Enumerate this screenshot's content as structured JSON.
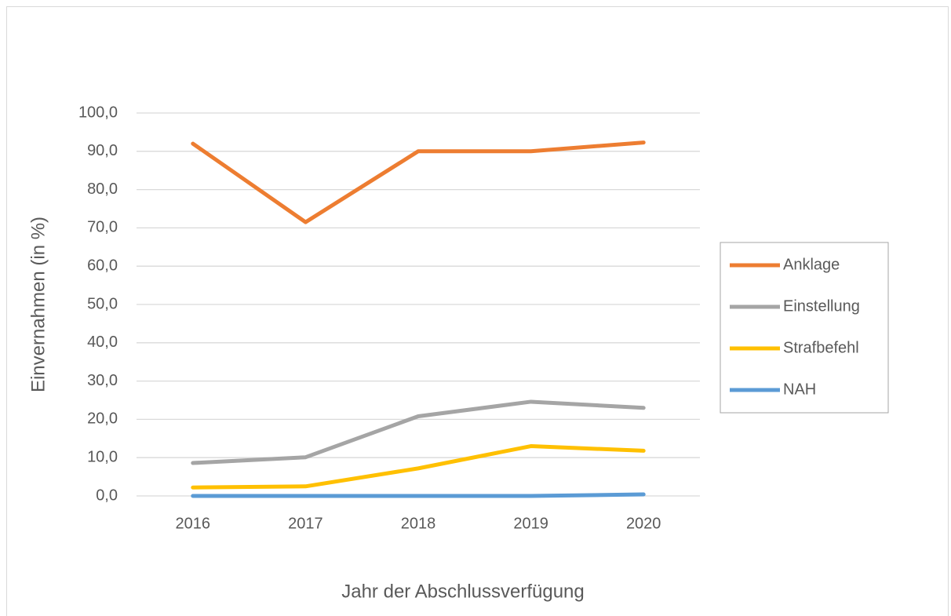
{
  "chart_data": {
    "type": "line",
    "xlabel": "Jahr der Abschlussverfügung",
    "ylabel": "Einvernahmen (in %)",
    "categories": [
      "2016",
      "2017",
      "2018",
      "2019",
      "2020"
    ],
    "series": [
      {
        "name": "Anklage",
        "color": "#ed7d31",
        "values": [
          92.0,
          71.5,
          90.0,
          90.0,
          92.3
        ]
      },
      {
        "name": "Einstellung",
        "color": "#a5a5a5",
        "values": [
          8.6,
          10.1,
          20.8,
          24.6,
          23.0
        ]
      },
      {
        "name": "Strafbefehl",
        "color": "#ffc000",
        "values": [
          2.2,
          2.5,
          7.2,
          13.0,
          11.8
        ]
      },
      {
        "name": "NAH",
        "color": "#5b9bd5",
        "values": [
          0.0,
          0.0,
          0.0,
          0.0,
          0.4
        ]
      }
    ],
    "ylim": [
      0,
      100
    ],
    "yticks": [
      {
        "value": 0,
        "label": "0,0"
      },
      {
        "value": 10,
        "label": "10,0"
      },
      {
        "value": 20,
        "label": "20,0"
      },
      {
        "value": 30,
        "label": "30,0"
      },
      {
        "value": 40,
        "label": "40,0"
      },
      {
        "value": 50,
        "label": "50,0"
      },
      {
        "value": 60,
        "label": "60,0"
      },
      {
        "value": 70,
        "label": "70,0"
      },
      {
        "value": 80,
        "label": "80,0"
      },
      {
        "value": 90,
        "label": "90,0"
      },
      {
        "value": 100,
        "label": "100,0"
      }
    ],
    "grid": true,
    "legend": "right"
  }
}
